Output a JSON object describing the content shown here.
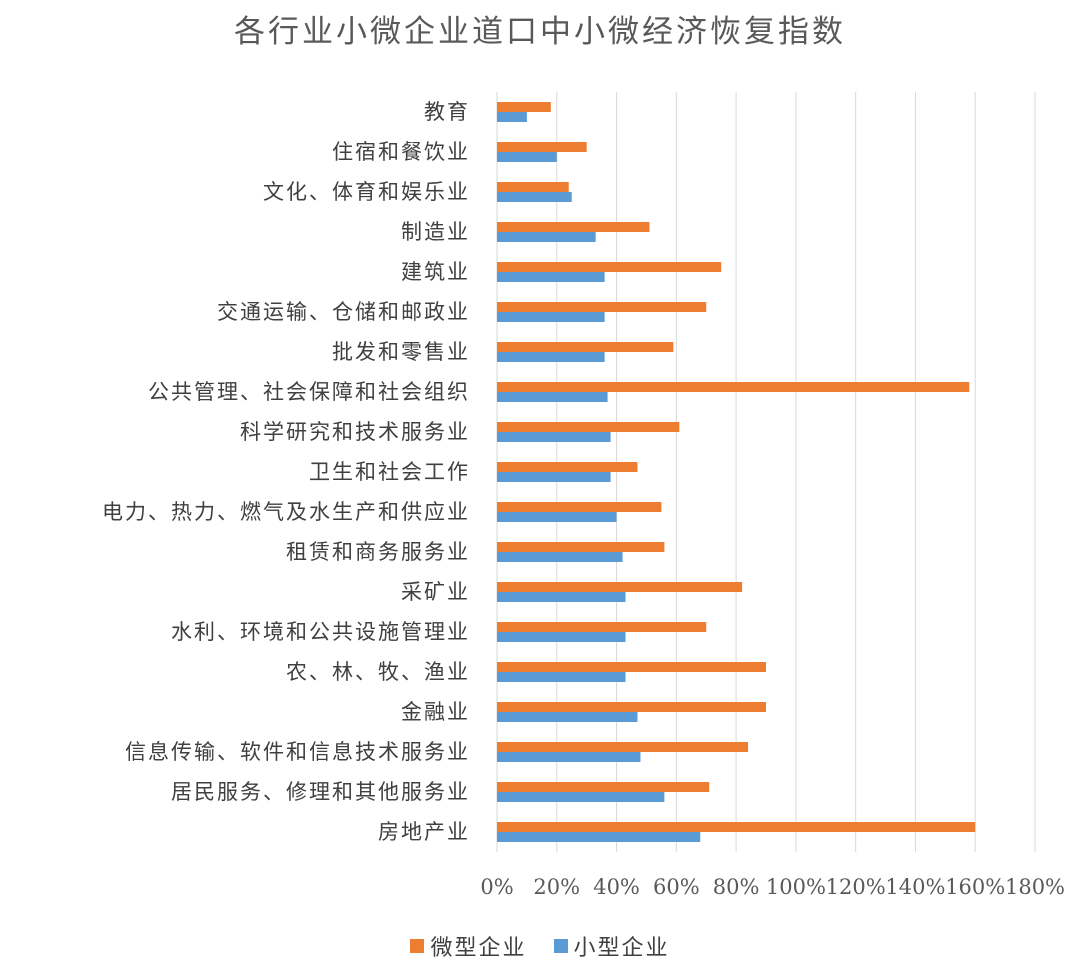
{
  "chart_data": {
    "type": "bar",
    "orientation": "horizontal",
    "title": "各行业小微企业道口中小微经济恢复指数",
    "categories": [
      "教育",
      "住宿和餐饮业",
      "文化、体育和娱乐业",
      "制造业",
      "建筑业",
      "交通运输、仓储和邮政业",
      "批发和零售业",
      "公共管理、社会保障和社会组织",
      "科学研究和技术服务业",
      "卫生和社会工作",
      "电力、热力、燃气及水生产和供应业",
      "租赁和商务服务业",
      "采矿业",
      "水利、环境和公共设施管理业",
      "农、林、牧、渔业",
      "金融业",
      "信息传输、软件和信息技术服务业",
      "居民服务、修理和其他服务业",
      "房地产业"
    ],
    "series": [
      {
        "name": "微型企业",
        "color": "#ED7D31",
        "values": [
          18,
          30,
          24,
          51,
          75,
          70,
          59,
          158,
          61,
          47,
          55,
          56,
          82,
          70,
          90,
          90,
          84,
          71,
          160
        ]
      },
      {
        "name": "小型企业",
        "color": "#5B9BD5",
        "values": [
          10,
          20,
          25,
          33,
          36,
          36,
          36,
          37,
          38,
          38,
          40,
          42,
          43,
          43,
          43,
          47,
          48,
          56,
          68
        ]
      }
    ],
    "xticks": [
      "0%",
      "20%",
      "40%",
      "60%",
      "80%",
      "100%",
      "120%",
      "140%",
      "160%",
      "180%"
    ],
    "xlim": [
      0,
      180
    ],
    "grid": true,
    "legend_position": "bottom"
  }
}
